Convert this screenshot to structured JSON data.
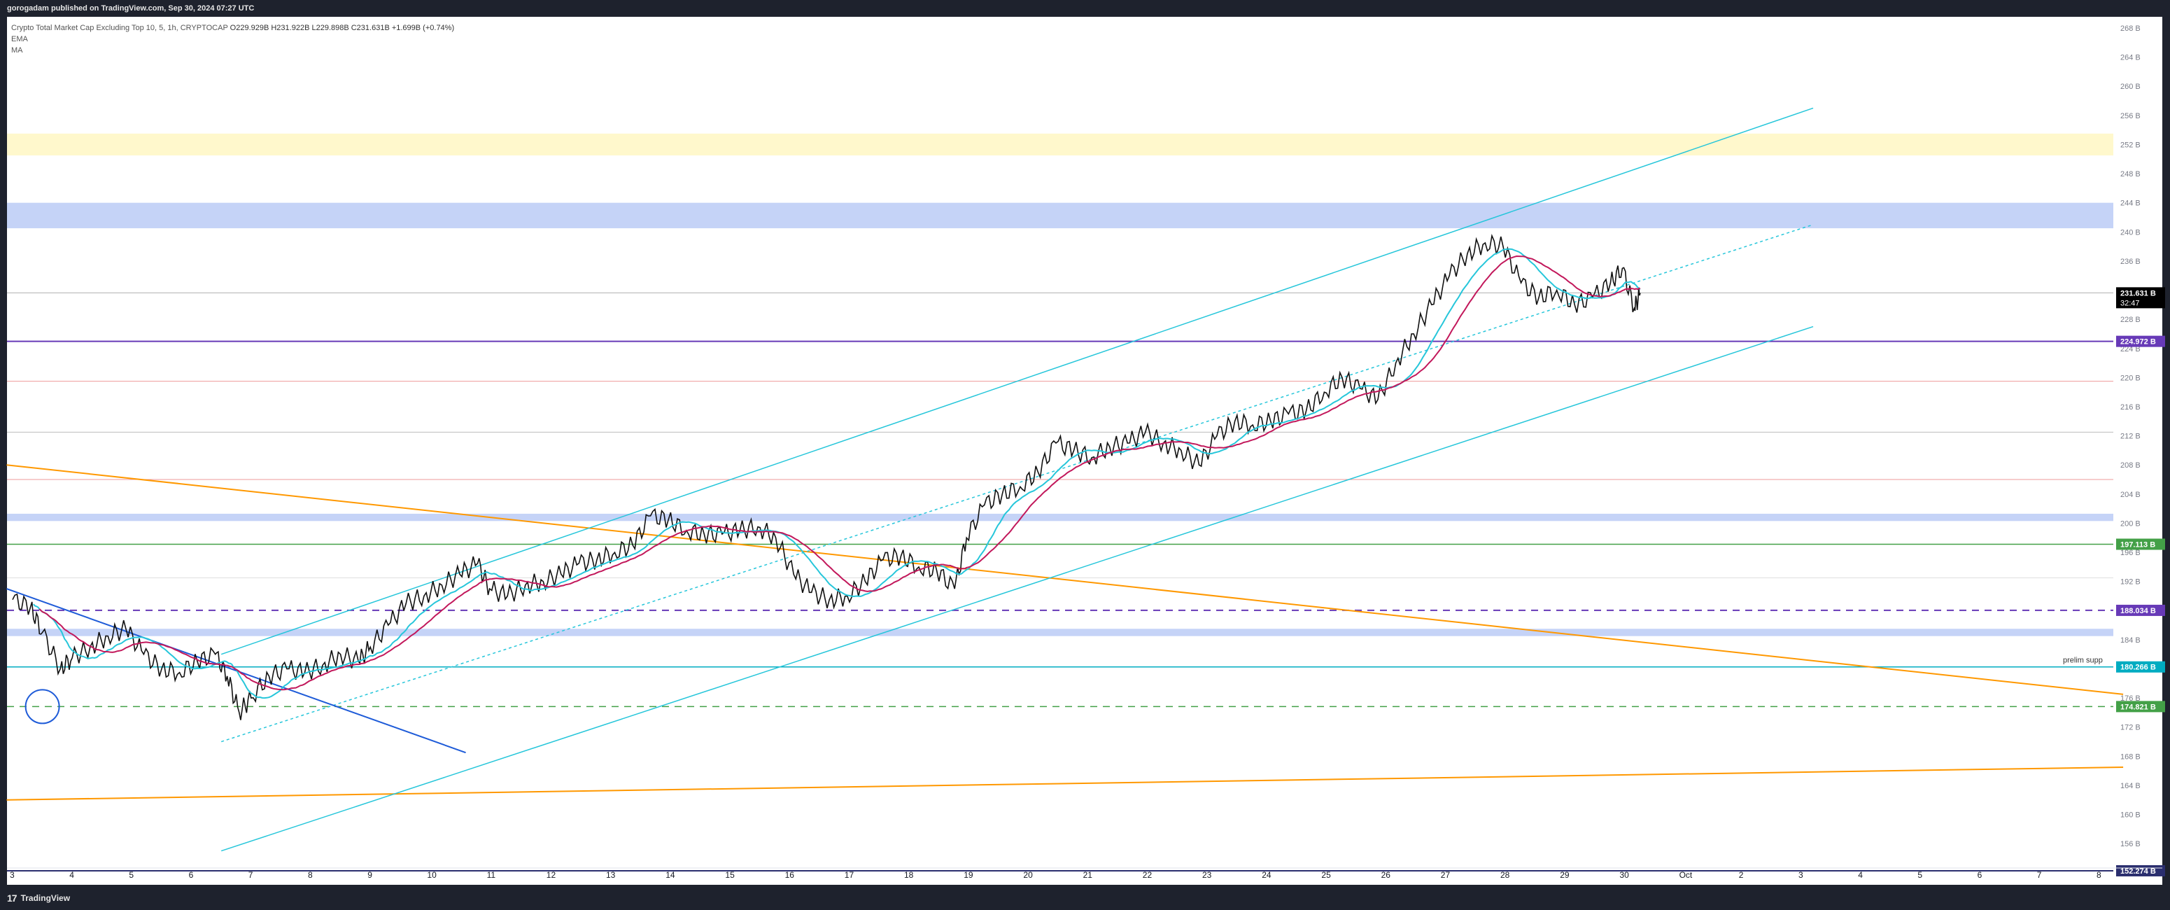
{
  "header": {
    "published": "gorogadam published on TradingView.com, Sep 30, 2024 07:27 UTC"
  },
  "legend": {
    "symbol": "Crypto Total Market Cap Excluding Top 10, 5, 1h, CRYPTOCAP",
    "values": "O229.929B H231.922B L229.898B C231.631B +1.699B (+0.74%)",
    "indicators": [
      "EMA",
      "MA"
    ]
  },
  "footer": {
    "brand": "TradingView"
  },
  "colors": {
    "candle": "#111111",
    "ema": "#26c6da",
    "ma": "#c2185b",
    "channel": "#26c6da",
    "orange": "#ff9800",
    "blue_line": "#1e5bd8",
    "zone_blue": "#c5d3f7",
    "zone_yellow": "#fff8cc",
    "purple": "#673ab7",
    "green": "#43a047",
    "teal": "#00acc1",
    "navy": "#2a2e6e"
  },
  "chart_data": {
    "type": "candlestick",
    "title": "Crypto Total Market Cap Excluding Top 10, 5, 1h, CRYPTOCAP",
    "ylim": [
      150,
      270
    ],
    "y_ticks": [
      "268 B",
      "264 B",
      "260 B",
      "256 B",
      "252 B",
      "248 B",
      "244 B",
      "240 B",
      "236 B",
      "232 B",
      "228 B",
      "224 B",
      "220 B",
      "216 B",
      "212 B",
      "208 B",
      "204 B",
      "200 B",
      "196 B",
      "192 B",
      "188 B",
      "184 B",
      "180 B",
      "176 B",
      "172 B",
      "168 B",
      "164 B",
      "160 B",
      "156 B"
    ],
    "x_ticks": [
      "3",
      "4",
      "5",
      "6",
      "7",
      "8",
      "9",
      "10",
      "11",
      "12",
      "13",
      "14",
      "15",
      "16",
      "17",
      "18",
      "19",
      "20",
      "21",
      "22",
      "23",
      "24",
      "25",
      "26",
      "27",
      "28",
      "29",
      "30",
      "Oct",
      "2",
      "3",
      "4",
      "5",
      "6",
      "7",
      "8"
    ],
    "price_path": [
      [
        3,
        189.5
      ],
      [
        3.3,
        188.5
      ],
      [
        3.5,
        185
      ],
      [
        3.8,
        180
      ],
      [
        4.0,
        181.5
      ],
      [
        4.3,
        183
      ],
      [
        4.6,
        184.5
      ],
      [
        4.9,
        185.5
      ],
      [
        5.2,
        182
      ],
      [
        5.5,
        180
      ],
      [
        5.8,
        179.5
      ],
      [
        6.1,
        181
      ],
      [
        6.4,
        182
      ],
      [
        6.6,
        179
      ],
      [
        6.8,
        174
      ],
      [
        7.0,
        176
      ],
      [
        7.3,
        179
      ],
      [
        7.6,
        180
      ],
      [
        7.9,
        179.5
      ],
      [
        8.2,
        180.5
      ],
      [
        8.5,
        182
      ],
      [
        8.8,
        181
      ],
      [
        9.0,
        183
      ],
      [
        9.3,
        186
      ],
      [
        9.6,
        189
      ],
      [
        9.9,
        190
      ],
      [
        10.2,
        191.5
      ],
      [
        10.5,
        193
      ],
      [
        10.8,
        194.5
      ],
      [
        11.0,
        191
      ],
      [
        11.3,
        190
      ],
      [
        11.6,
        191.5
      ],
      [
        11.9,
        192
      ],
      [
        12.2,
        193
      ],
      [
        12.5,
        194.5
      ],
      [
        12.8,
        195
      ],
      [
        13.1,
        196
      ],
      [
        13.4,
        197
      ],
      [
        13.7,
        201
      ],
      [
        14.0,
        200.5
      ],
      [
        14.3,
        199
      ],
      [
        14.6,
        198.5
      ],
      [
        14.9,
        198.5
      ],
      [
        15.2,
        199
      ],
      [
        15.5,
        199.5
      ],
      [
        15.8,
        198
      ],
      [
        16.1,
        193
      ],
      [
        16.4,
        190.5
      ],
      [
        16.7,
        189.5
      ],
      [
        17.0,
        190
      ],
      [
        17.3,
        192
      ],
      [
        17.6,
        195
      ],
      [
        17.9,
        195.5
      ],
      [
        18.2,
        194
      ],
      [
        18.5,
        193.5
      ],
      [
        18.8,
        191
      ],
      [
        19.0,
        198
      ],
      [
        19.3,
        202.5
      ],
      [
        19.6,
        204
      ],
      [
        19.9,
        205
      ],
      [
        20.2,
        207
      ],
      [
        20.5,
        211
      ],
      [
        20.8,
        210
      ],
      [
        21.1,
        209
      ],
      [
        21.4,
        210.5
      ],
      [
        21.7,
        211
      ],
      [
        22.0,
        212.5
      ],
      [
        22.3,
        211
      ],
      [
        22.6,
        210
      ],
      [
        22.9,
        208
      ],
      [
        23.2,
        212
      ],
      [
        23.5,
        214
      ],
      [
        23.8,
        213.5
      ],
      [
        24.1,
        214
      ],
      [
        24.4,
        215
      ],
      [
        24.7,
        215.5
      ],
      [
        25.0,
        218
      ],
      [
        25.3,
        220
      ],
      [
        25.6,
        218.5
      ],
      [
        25.9,
        217
      ],
      [
        26.2,
        222
      ],
      [
        26.5,
        226
      ],
      [
        26.8,
        230
      ],
      [
        27.1,
        234
      ],
      [
        27.4,
        237
      ],
      [
        27.7,
        238.5
      ],
      [
        28.0,
        238
      ],
      [
        28.3,
        233
      ],
      [
        28.6,
        231
      ],
      [
        28.9,
        232
      ],
      [
        29.2,
        230
      ],
      [
        29.5,
        231
      ],
      [
        29.8,
        233
      ],
      [
        30.0,
        235
      ],
      [
        30.2,
        229.5
      ],
      [
        30.3,
        231.6
      ]
    ],
    "series": [
      {
        "name": "EMA"
      },
      {
        "name": "MA"
      }
    ],
    "price_labels": [
      {
        "text": "231.631 B",
        "value": 231.631,
        "sub": "32:47",
        "color": "#000000"
      },
      {
        "text": "224.972 B",
        "value": 224.972,
        "color": "#673ab7"
      },
      {
        "text": "197.113 B",
        "value": 197.113,
        "color": "#43a047"
      },
      {
        "text": "188.034 B",
        "value": 188.034,
        "color": "#673ab7"
      },
      {
        "text": "180.266 B",
        "value": 180.266,
        "color": "#00acc1"
      },
      {
        "text": "174.821 B",
        "value": 174.821,
        "color": "#43a047"
      },
      {
        "text": "152.274 B",
        "value": 152.274,
        "color": "#2a2e6e"
      }
    ],
    "annotations": [
      {
        "text": "prelim supp",
        "value": 180.266
      }
    ],
    "zones": [
      {
        "from": 250.5,
        "to": 253.5,
        "color": "zone_yellow"
      },
      {
        "from": 240.5,
        "to": 244,
        "color": "zone_blue"
      },
      {
        "from": 200.3,
        "to": 201.3,
        "color": "zone_blue"
      },
      {
        "from": 184.5,
        "to": 185.5,
        "color": "zone_blue"
      }
    ],
    "grid": false,
    "legend_position": "top-left"
  }
}
